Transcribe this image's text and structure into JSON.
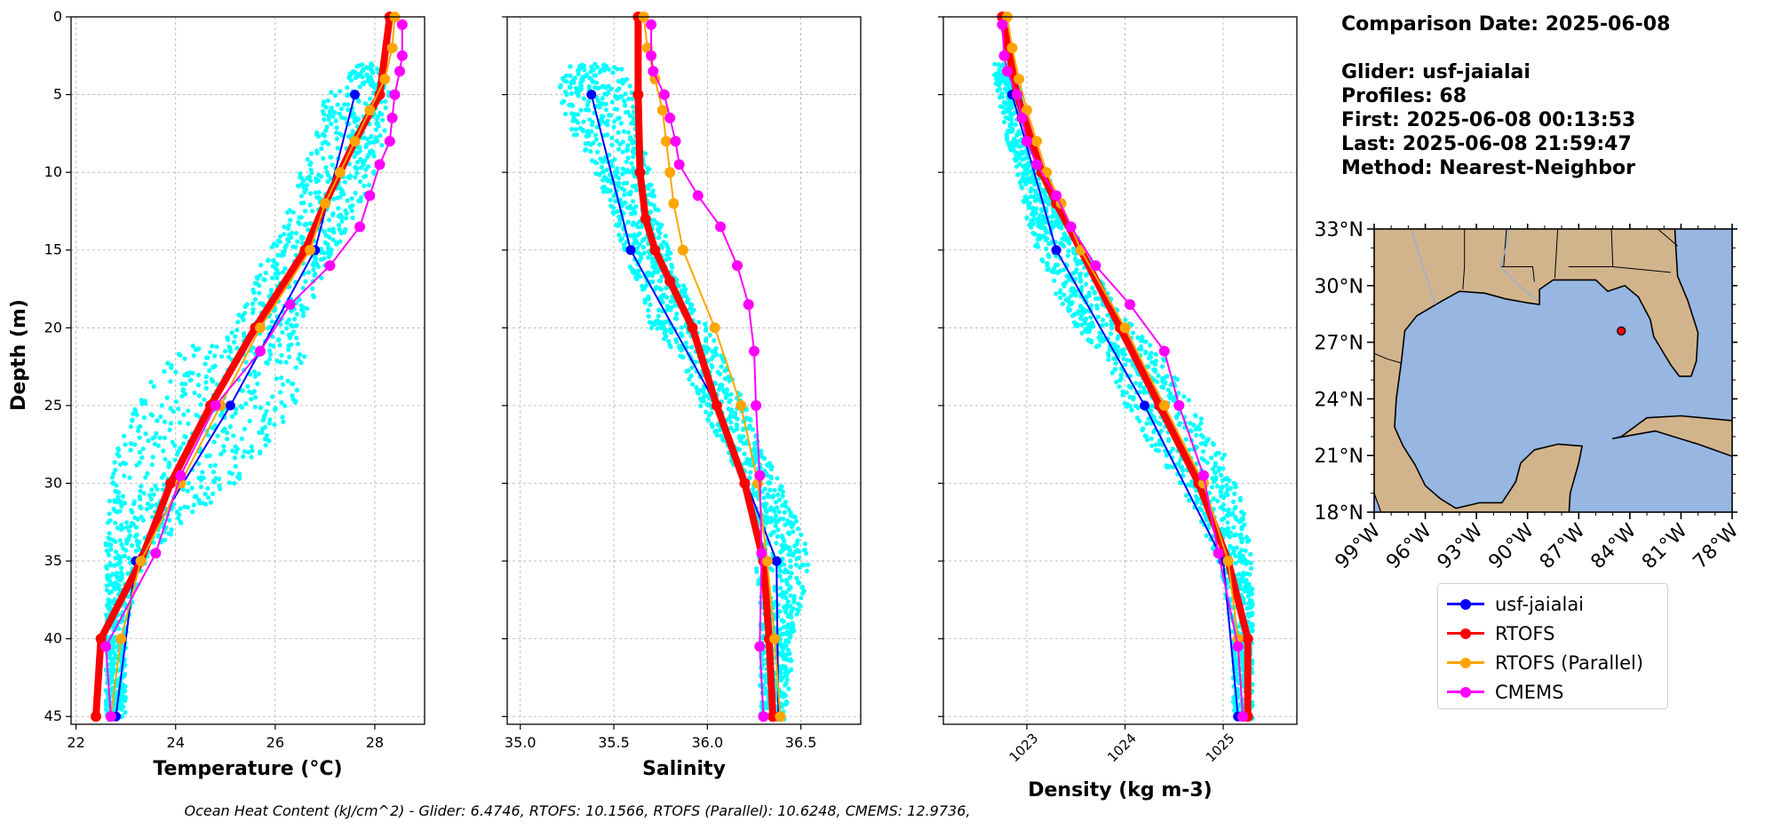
{
  "info": {
    "comparison_date": "Comparison Date: 2025-06-08",
    "glider": "Glider: usf-jaialai",
    "profiles": "Profiles: 68",
    "first": "First: 2025-06-08 00:13:53",
    "last": "Last: 2025-06-08 21:59:47",
    "method": "Method: Nearest-Neighbor"
  },
  "footer_text": "Ocean Heat Content (kJ/cm^2) - Glider: 6.4746,  RTOFS: 10.1566,  RTOFS (Parallel): 10.6248,  CMEMS: 12.9736,",
  "legend": [
    {
      "label": "usf-jaialai",
      "color": "#0000ff"
    },
    {
      "label": "RTOFS",
      "color": "#ff0000"
    },
    {
      "label": "RTOFS (Parallel)",
      "color": "#ffa500"
    },
    {
      "label": "CMEMS",
      "color": "#ff00ff"
    }
  ],
  "colors": {
    "scatter": "#00ffff",
    "glider": "#0000ff",
    "rtofs": "#ff0000",
    "rtofs_parallel": "#ffa500",
    "cmems": "#ff00ff",
    "land": "#d2b48c",
    "ocean": "#97b6e1"
  },
  "chart_data": [
    {
      "type": "line",
      "xlabel": "Temperature (°C)",
      "ylabel": "Depth (m)",
      "xlim": [
        21.9,
        29.0
      ],
      "ylim": [
        45.5,
        0
      ],
      "xticks": [
        22,
        24,
        26,
        28
      ],
      "yticks": [
        0,
        5,
        10,
        15,
        20,
        25,
        30,
        35,
        40,
        45
      ],
      "grid": true,
      "scatter_envelope": {
        "name": "glider profiles",
        "depth": [
          3,
          5,
          8,
          10,
          13,
          15,
          18,
          20,
          22,
          25,
          28,
          30,
          33,
          35,
          38,
          40,
          42,
          45
        ],
        "min": [
          27.7,
          27.0,
          26.8,
          26.5,
          26.2,
          25.8,
          25.5,
          25.0,
          23.8,
          23.2,
          22.8,
          22.7,
          22.6,
          22.6,
          22.6,
          22.6,
          22.6,
          22.6
        ],
        "max": [
          28.2,
          28.3,
          28.2,
          28.0,
          27.6,
          27.2,
          26.8,
          26.5,
          26.6,
          26.4,
          25.8,
          25.2,
          24.0,
          23.4,
          23.1,
          23.0,
          23.0,
          23.0
        ]
      },
      "series": [
        {
          "name": "usf-jaialai",
          "depth": [
            5,
            15,
            25,
            35,
            45
          ],
          "values": [
            27.6,
            26.8,
            25.1,
            23.2,
            22.8
          ]
        },
        {
          "name": "RTOFS",
          "depth": [
            0,
            5,
            8,
            10,
            12,
            15,
            20,
            25,
            30,
            35,
            40,
            45
          ],
          "values": [
            28.3,
            28.1,
            27.6,
            27.3,
            27.0,
            26.6,
            25.6,
            24.7,
            23.9,
            23.3,
            22.5,
            22.4
          ]
        },
        {
          "name": "RTOFS (Parallel)",
          "depth": [
            0,
            2,
            4,
            6,
            8,
            10,
            12,
            15,
            20,
            25,
            30,
            35,
            40,
            45
          ],
          "values": [
            28.4,
            28.35,
            28.2,
            27.9,
            27.6,
            27.3,
            27.0,
            26.7,
            25.7,
            24.9,
            24.1,
            23.3,
            22.9,
            22.7
          ]
        },
        {
          "name": "CMEMS",
          "depth": [
            0.5,
            2.5,
            3.5,
            5,
            6.5,
            8,
            9.5,
            11.5,
            13.5,
            16,
            18.5,
            21.5,
            25,
            29.5,
            34.5,
            40.5,
            45
          ],
          "values": [
            28.55,
            28.55,
            28.5,
            28.4,
            28.35,
            28.3,
            28.1,
            27.9,
            27.7,
            27.1,
            26.3,
            25.7,
            24.8,
            24.1,
            23.6,
            22.6,
            22.7
          ]
        }
      ]
    },
    {
      "type": "line",
      "xlabel": "Salinity",
      "xlim": [
        34.93,
        36.82
      ],
      "ylim": [
        45.5,
        0
      ],
      "xticks": [
        35.0,
        35.5,
        36.0,
        36.5
      ],
      "grid": true,
      "scatter_envelope": {
        "name": "glider profiles",
        "depth": [
          3,
          5,
          8,
          10,
          13,
          15,
          18,
          20,
          22,
          25,
          28,
          30,
          33,
          35,
          38,
          40,
          42,
          45
        ],
        "min": [
          35.25,
          35.2,
          35.3,
          35.4,
          35.5,
          35.55,
          35.65,
          35.7,
          35.85,
          35.95,
          36.1,
          36.2,
          36.25,
          36.25,
          36.28,
          36.28,
          36.28,
          36.28
        ],
        "max": [
          35.55,
          35.6,
          35.65,
          35.7,
          35.75,
          35.8,
          35.9,
          36.0,
          36.1,
          36.2,
          36.3,
          36.4,
          36.5,
          36.55,
          36.5,
          36.45,
          36.45,
          36.42
        ]
      },
      "series": [
        {
          "name": "usf-jaialai",
          "depth": [
            5,
            15,
            25,
            35,
            45
          ],
          "values": [
            35.38,
            35.59,
            36.05,
            36.37,
            36.38
          ]
        },
        {
          "name": "RTOFS",
          "depth": [
            0,
            5,
            10,
            13,
            15,
            17,
            20,
            25,
            30,
            35,
            40,
            45
          ],
          "values": [
            35.63,
            35.63,
            35.64,
            35.67,
            35.72,
            35.8,
            35.92,
            36.05,
            36.2,
            36.3,
            36.33,
            36.35
          ]
        },
        {
          "name": "RTOFS (Parallel)",
          "depth": [
            0,
            2,
            4,
            6,
            8,
            10,
            12,
            15,
            20,
            25,
            30,
            35,
            40,
            45
          ],
          "values": [
            35.66,
            35.68,
            35.72,
            35.76,
            35.78,
            35.8,
            35.82,
            35.87,
            36.04,
            36.18,
            36.27,
            36.32,
            36.36,
            36.39
          ]
        },
        {
          "name": "CMEMS",
          "depth": [
            0.5,
            2.5,
            3.5,
            5,
            6.5,
            8,
            9.5,
            11.5,
            13.5,
            16,
            18.5,
            21.5,
            25,
            29.5,
            34.5,
            40.5,
            45
          ],
          "values": [
            35.7,
            35.7,
            35.71,
            35.77,
            35.8,
            35.83,
            35.85,
            35.95,
            36.07,
            36.16,
            36.22,
            36.25,
            36.26,
            36.28,
            36.29,
            36.28,
            36.3
          ]
        }
      ]
    },
    {
      "type": "line",
      "xlabel": "Density (kg m-3)",
      "xlim": [
        1022.15,
        1025.75
      ],
      "ylim": [
        45.5,
        0
      ],
      "xticks": [
        1023,
        1024,
        1025
      ],
      "grid": true,
      "scatter_envelope": {
        "name": "glider profiles",
        "depth": [
          3,
          5,
          8,
          10,
          13,
          15,
          18,
          20,
          22,
          25,
          28,
          30,
          33,
          35,
          38,
          40,
          42,
          45
        ],
        "min": [
          1022.65,
          1022.7,
          1022.8,
          1022.9,
          1023.0,
          1023.1,
          1023.3,
          1023.5,
          1023.8,
          1024.0,
          1024.3,
          1024.55,
          1024.8,
          1024.95,
          1025.05,
          1025.1,
          1025.1,
          1025.1
        ],
        "max": [
          1022.85,
          1022.95,
          1023.05,
          1023.2,
          1023.4,
          1023.6,
          1023.85,
          1024.1,
          1024.4,
          1024.7,
          1025.0,
          1025.15,
          1025.25,
          1025.3,
          1025.3,
          1025.3,
          1025.3,
          1025.3
        ]
      },
      "series": [
        {
          "name": "usf-jaialai",
          "depth": [
            5,
            15,
            25,
            35,
            45
          ],
          "values": [
            1022.85,
            1023.3,
            1024.2,
            1025.0,
            1025.15
          ]
        },
        {
          "name": "RTOFS",
          "depth": [
            0,
            5,
            8,
            10,
            12,
            15,
            20,
            25,
            30,
            35,
            40,
            45
          ],
          "values": [
            1022.75,
            1022.9,
            1023.05,
            1023.15,
            1023.3,
            1023.55,
            1023.95,
            1024.35,
            1024.75,
            1025.05,
            1025.25,
            1025.25
          ]
        },
        {
          "name": "RTOFS (Parallel)",
          "depth": [
            0,
            2,
            4,
            6,
            8,
            10,
            12,
            15,
            20,
            25,
            30,
            35,
            40,
            45
          ],
          "values": [
            1022.8,
            1022.85,
            1022.92,
            1023.0,
            1023.1,
            1023.2,
            1023.35,
            1023.55,
            1024.0,
            1024.4,
            1024.8,
            1025.05,
            1025.15,
            1025.2
          ]
        },
        {
          "name": "CMEMS",
          "depth": [
            0.5,
            2.5,
            3.5,
            5,
            6.5,
            8,
            9.5,
            11.5,
            13.5,
            16,
            18.5,
            21.5,
            25,
            29.5,
            34.5,
            40.5,
            45
          ],
          "values": [
            1022.75,
            1022.77,
            1022.8,
            1022.9,
            1022.95,
            1023.0,
            1023.1,
            1023.3,
            1023.45,
            1023.7,
            1024.05,
            1024.4,
            1024.55,
            1024.8,
            1024.95,
            1025.15,
            1025.2
          ]
        }
      ]
    }
  ],
  "map": {
    "lat_ticks": [
      "33°N",
      "30°N",
      "27°N",
      "24°N",
      "21°N",
      "18°N"
    ],
    "lon_ticks": [
      "99°W",
      "96°W",
      "93°W",
      "90°W",
      "87°W",
      "84°W",
      "81°W",
      "78°W"
    ],
    "lon_range": [
      -99,
      -78
    ],
    "lat_range": [
      18,
      33
    ],
    "glider_position": {
      "lon": -84.5,
      "lat": 27.6
    }
  }
}
